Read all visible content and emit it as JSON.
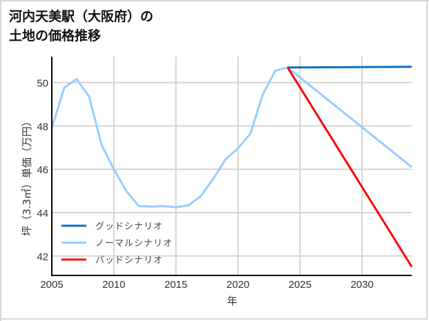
{
  "title": {
    "line1": "河内天美駅（大阪府）の",
    "line2": "土地の価格推移"
  },
  "chart_data": {
    "type": "line",
    "title": "河内天美駅（大阪府）の土地の価格推移",
    "xlabel": "年",
    "ylabel": "坪（3.3㎡）単価（万円）",
    "xlim": [
      2005,
      2034
    ],
    "ylim": [
      41.1,
      51.2
    ],
    "x_ticks": [
      2005,
      2010,
      2015,
      2020,
      2025,
      2030
    ],
    "y_ticks": [
      42,
      44,
      46,
      48,
      50
    ],
    "grid": true,
    "legend_position": "lower left",
    "series": [
      {
        "name": "グッドシナリオ",
        "color": "#0a6fc4",
        "x": [
          2024,
          2034
        ],
        "values": [
          50.7,
          50.73
        ]
      },
      {
        "name": "ノーマルシナリオ",
        "color": "#99ccff",
        "x": [
          2005,
          2006,
          2007,
          2008,
          2009,
          2010,
          2011,
          2012,
          2013,
          2014,
          2015,
          2016,
          2017,
          2018,
          2019,
          2020,
          2021,
          2022,
          2023,
          2024,
          2034
        ],
        "values": [
          47.9,
          49.77,
          50.16,
          49.36,
          47.14,
          46.0,
          45.0,
          44.3,
          44.28,
          44.3,
          44.25,
          44.33,
          44.76,
          45.56,
          46.46,
          46.97,
          47.64,
          49.45,
          50.55,
          50.7,
          46.1
        ]
      },
      {
        "name": "バッドシナリオ",
        "color": "#ff0000",
        "x": [
          2024,
          2034
        ],
        "values": [
          50.7,
          41.5
        ]
      }
    ]
  }
}
